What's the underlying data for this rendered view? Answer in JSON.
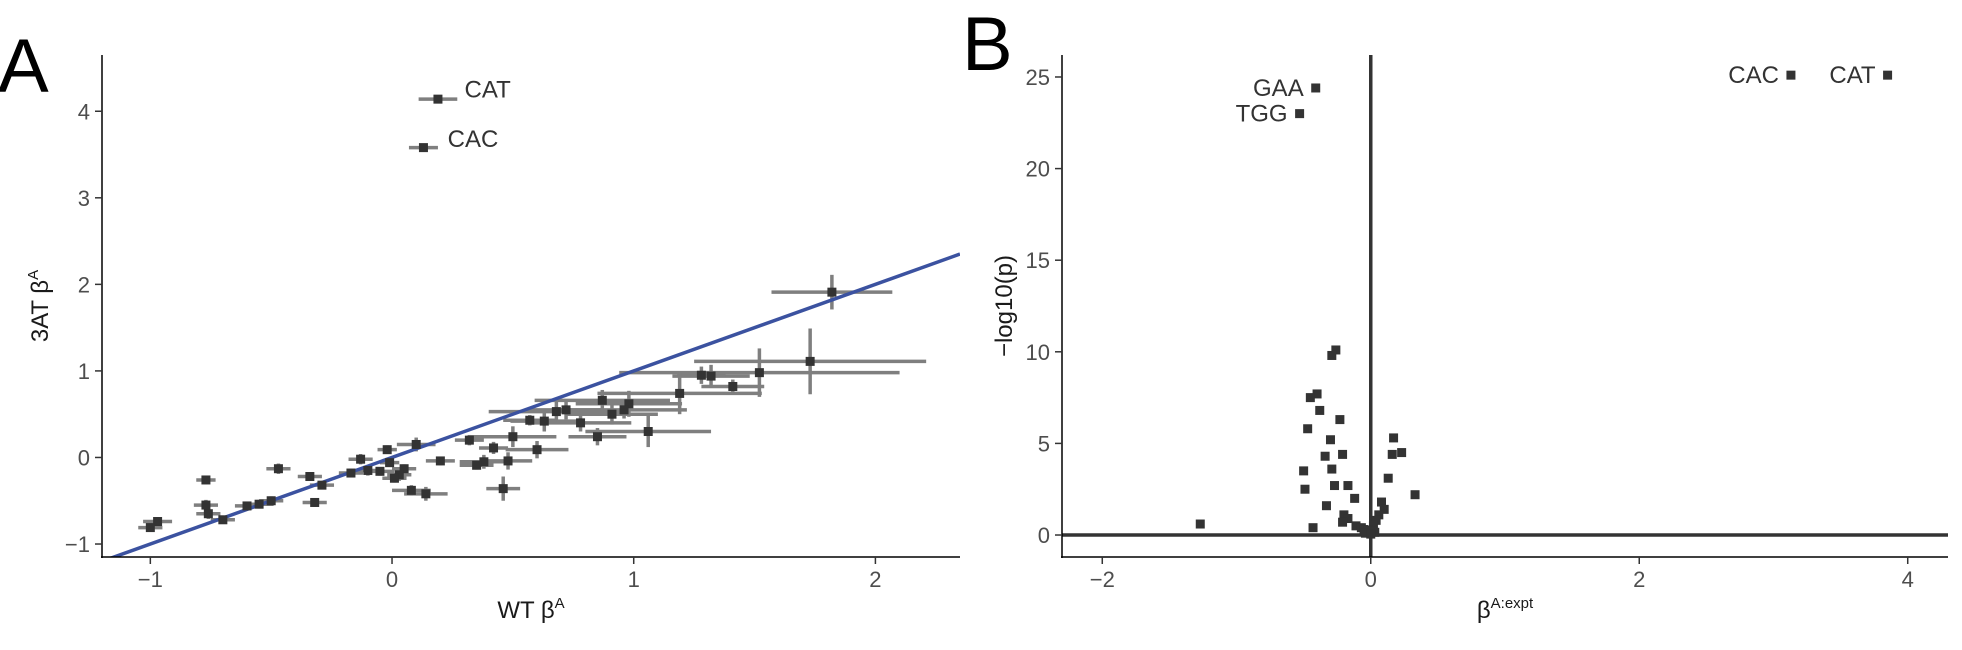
{
  "chart_data": [
    {
      "type": "scatter",
      "panel_label": "A",
      "xlabel": "WT β",
      "xlabel_sup": "A",
      "ylabel": "3AT β",
      "ylabel_sup": "A",
      "xlim": [
        -1.2,
        2.35
      ],
      "ylim": [
        -1.15,
        4.65
      ],
      "x_ticks": [
        -1,
        0,
        1,
        2
      ],
      "x_tick_labels": [
        "−1",
        "0",
        "1",
        "2"
      ],
      "y_ticks": [
        -1,
        0,
        1,
        2,
        3,
        4
      ],
      "y_tick_labels": [
        "−1",
        "0",
        "1",
        "2",
        "3",
        "4"
      ],
      "grid": false,
      "colors": {
        "points": "#333333",
        "error_bars": "#7f7f7f",
        "fit_line": "#3b52a0"
      },
      "fit_line": {
        "slope": 1,
        "intercept": 0
      },
      "labels": [
        {
          "text": "CAT",
          "x": 0.3,
          "y": 4.25
        },
        {
          "text": "CAC",
          "x": 0.23,
          "y": 3.68
        }
      ],
      "points": [
        {
          "x": 0.19,
          "y": 4.14,
          "xerr": 0.08,
          "yerr": 0.04
        },
        {
          "x": 0.13,
          "y": 3.58,
          "xerr": 0.06,
          "yerr": 0.04
        },
        {
          "x": 1.82,
          "y": 1.91,
          "xerr": 0.25,
          "yerr": 0.2
        },
        {
          "x": 1.73,
          "y": 1.11,
          "xerr": 0.48,
          "yerr": 0.38
        },
        {
          "x": 1.52,
          "y": 0.98,
          "xerr": 0.58,
          "yerr": 0.28
        },
        {
          "x": 1.41,
          "y": 0.82,
          "xerr": 0.13,
          "yerr": 0.08
        },
        {
          "x": 1.32,
          "y": 0.94,
          "xerr": 0.16,
          "yerr": 0.13
        },
        {
          "x": 1.28,
          "y": 0.95,
          "xerr": 0.1,
          "yerr": 0.1
        },
        {
          "x": 1.19,
          "y": 0.74,
          "xerr": 0.34,
          "yerr": 0.24
        },
        {
          "x": 1.06,
          "y": 0.3,
          "xerr": 0.26,
          "yerr": 0.18
        },
        {
          "x": 0.98,
          "y": 0.62,
          "xerr": 0.22,
          "yerr": 0.15
        },
        {
          "x": 0.96,
          "y": 0.55,
          "xerr": 0.26,
          "yerr": 0.1
        },
        {
          "x": 0.91,
          "y": 0.5,
          "xerr": 0.19,
          "yerr": 0.12
        },
        {
          "x": 0.87,
          "y": 0.66,
          "xerr": 0.28,
          "yerr": 0.12
        },
        {
          "x": 0.85,
          "y": 0.24,
          "xerr": 0.12,
          "yerr": 0.1
        },
        {
          "x": 0.78,
          "y": 0.4,
          "xerr": 0.21,
          "yerr": 0.1
        },
        {
          "x": 0.72,
          "y": 0.55,
          "xerr": 0.15,
          "yerr": 0.11
        },
        {
          "x": 0.68,
          "y": 0.53,
          "xerr": 0.28,
          "yerr": 0.12
        },
        {
          "x": 0.63,
          "y": 0.42,
          "xerr": 0.14,
          "yerr": 0.12
        },
        {
          "x": 0.6,
          "y": 0.09,
          "xerr": 0.13,
          "yerr": 0.1
        },
        {
          "x": 0.57,
          "y": 0.43,
          "xerr": 0.11,
          "yerr": 0.06
        },
        {
          "x": 0.5,
          "y": 0.24,
          "xerr": 0.18,
          "yerr": 0.12
        },
        {
          "x": 0.48,
          "y": -0.04,
          "xerr": 0.1,
          "yerr": 0.1
        },
        {
          "x": 0.46,
          "y": -0.36,
          "xerr": 0.07,
          "yerr": 0.14
        },
        {
          "x": 0.42,
          "y": 0.11,
          "xerr": 0.06,
          "yerr": 0.07
        },
        {
          "x": 0.38,
          "y": -0.05,
          "xerr": 0.1,
          "yerr": 0.08
        },
        {
          "x": 0.35,
          "y": -0.09,
          "xerr": 0.07,
          "yerr": 0.05
        },
        {
          "x": 0.32,
          "y": 0.2,
          "xerr": 0.06,
          "yerr": 0.06
        },
        {
          "x": 0.2,
          "y": -0.04,
          "xerr": 0.06,
          "yerr": 0.05
        },
        {
          "x": 0.14,
          "y": -0.42,
          "xerr": 0.09,
          "yerr": 0.08
        },
        {
          "x": 0.1,
          "y": 0.15,
          "xerr": 0.08,
          "yerr": 0.08
        },
        {
          "x": 0.08,
          "y": -0.38,
          "xerr": 0.08,
          "yerr": 0.06
        },
        {
          "x": 0.05,
          "y": -0.13,
          "xerr": 0.05,
          "yerr": 0.05
        },
        {
          "x": 0.03,
          "y": -0.2,
          "xerr": 0.05,
          "yerr": 0.07
        },
        {
          "x": 0.01,
          "y": -0.24,
          "xerr": 0.05,
          "yerr": 0.05
        },
        {
          "x": -0.01,
          "y": -0.06,
          "xerr": 0.04,
          "yerr": 0.05
        },
        {
          "x": -0.02,
          "y": 0.09,
          "xerr": 0.04,
          "yerr": 0.05
        },
        {
          "x": -0.05,
          "y": -0.16,
          "xerr": 0.06,
          "yerr": 0.05
        },
        {
          "x": -0.1,
          "y": -0.15,
          "xerr": 0.06,
          "yerr": 0.06
        },
        {
          "x": -0.13,
          "y": -0.02,
          "xerr": 0.05,
          "yerr": 0.06
        },
        {
          "x": -0.17,
          "y": -0.18,
          "xerr": 0.05,
          "yerr": 0.05
        },
        {
          "x": -0.29,
          "y": -0.32,
          "xerr": 0.05,
          "yerr": 0.04
        },
        {
          "x": -0.32,
          "y": -0.52,
          "xerr": 0.05,
          "yerr": 0.05
        },
        {
          "x": -0.34,
          "y": -0.22,
          "xerr": 0.05,
          "yerr": 0.05
        },
        {
          "x": -0.47,
          "y": -0.13,
          "xerr": 0.05,
          "yerr": 0.06
        },
        {
          "x": -0.5,
          "y": -0.5,
          "xerr": 0.05,
          "yerr": 0.05
        },
        {
          "x": -0.55,
          "y": -0.54,
          "xerr": 0.06,
          "yerr": 0.05
        },
        {
          "x": -0.6,
          "y": -0.56,
          "xerr": 0.05,
          "yerr": 0.05
        },
        {
          "x": -0.7,
          "y": -0.72,
          "xerr": 0.05,
          "yerr": 0.04
        },
        {
          "x": -0.77,
          "y": -0.26,
          "xerr": 0.04,
          "yerr": 0.05
        },
        {
          "x": -0.77,
          "y": -0.55,
          "xerr": 0.05,
          "yerr": 0.06
        },
        {
          "x": -0.76,
          "y": -0.65,
          "xerr": 0.05,
          "yerr": 0.06
        },
        {
          "x": -0.97,
          "y": -0.74,
          "xerr": 0.06,
          "yerr": 0.05
        },
        {
          "x": -1.0,
          "y": -0.81,
          "xerr": 0.05,
          "yerr": 0.05
        }
      ]
    },
    {
      "type": "scatter",
      "panel_label": "B",
      "xlabel": "β",
      "xlabel_sup": "A:expt",
      "ylabel": "−log10(p)",
      "xlim": [
        -2.3,
        4.3
      ],
      "ylim": [
        -1.2,
        26.2
      ],
      "x_ticks": [
        -2,
        0,
        2,
        4
      ],
      "x_tick_labels": [
        "−2",
        "0",
        "2",
        "4"
      ],
      "y_ticks": [
        0,
        5,
        10,
        15,
        20,
        25
      ],
      "y_tick_labels": [
        "0",
        "5",
        "10",
        "15",
        "20",
        "25"
      ],
      "grid": false,
      "reference_lines": {
        "x": 0,
        "y": 0
      },
      "colors": {
        "points": "#333333",
        "reference_lines": "#333333"
      },
      "labels": [
        {
          "text": "CAC",
          "x": 3.13,
          "y": 25.1,
          "anchor": "end"
        },
        {
          "text": "CAT",
          "x": 3.85,
          "y": 25.1,
          "anchor": "end"
        },
        {
          "text": "GAA",
          "x": -0.41,
          "y": 24.4,
          "anchor": "end"
        },
        {
          "text": "TGG",
          "x": -0.53,
          "y": 23.0,
          "anchor": "end"
        }
      ],
      "points": [
        {
          "x": 3.13,
          "y": 25.1
        },
        {
          "x": 3.85,
          "y": 25.1
        },
        {
          "x": -0.41,
          "y": 24.4
        },
        {
          "x": -0.53,
          "y": 23.0
        },
        {
          "x": -0.26,
          "y": 10.1
        },
        {
          "x": -0.29,
          "y": 9.8
        },
        {
          "x": -0.4,
          "y": 7.7
        },
        {
          "x": -0.45,
          "y": 7.5
        },
        {
          "x": -0.38,
          "y": 6.8
        },
        {
          "x": -0.23,
          "y": 6.3
        },
        {
          "x": -0.3,
          "y": 5.2
        },
        {
          "x": -0.47,
          "y": 5.8
        },
        {
          "x": 0.17,
          "y": 5.3
        },
        {
          "x": 0.23,
          "y": 4.5
        },
        {
          "x": 0.16,
          "y": 4.4
        },
        {
          "x": -0.34,
          "y": 4.3
        },
        {
          "x": -0.21,
          "y": 4.4
        },
        {
          "x": -0.5,
          "y": 3.5
        },
        {
          "x": -0.29,
          "y": 3.6
        },
        {
          "x": 0.13,
          "y": 3.1
        },
        {
          "x": -0.27,
          "y": 2.7
        },
        {
          "x": -0.17,
          "y": 2.7
        },
        {
          "x": -0.49,
          "y": 2.5
        },
        {
          "x": 0.33,
          "y": 2.2
        },
        {
          "x": -0.12,
          "y": 2.0
        },
        {
          "x": 0.08,
          "y": 1.8
        },
        {
          "x": -0.33,
          "y": 1.6
        },
        {
          "x": 0.1,
          "y": 1.4
        },
        {
          "x": 0.06,
          "y": 1.1
        },
        {
          "x": -0.2,
          "y": 1.1
        },
        {
          "x": -0.17,
          "y": 0.9
        },
        {
          "x": 0.04,
          "y": 0.8
        },
        {
          "x": -0.21,
          "y": 0.7
        },
        {
          "x": -1.27,
          "y": 0.6
        },
        {
          "x": -0.11,
          "y": 0.5
        },
        {
          "x": 0.02,
          "y": 0.5
        },
        {
          "x": -0.07,
          "y": 0.4
        },
        {
          "x": -0.43,
          "y": 0.4
        },
        {
          "x": -0.05,
          "y": 0.3
        },
        {
          "x": -0.02,
          "y": 0.25
        },
        {
          "x": 0.01,
          "y": 0.2
        },
        {
          "x": 0.03,
          "y": 0.15
        },
        {
          "x": -0.04,
          "y": 0.1
        },
        {
          "x": 0.0,
          "y": 0.05
        }
      ]
    }
  ]
}
